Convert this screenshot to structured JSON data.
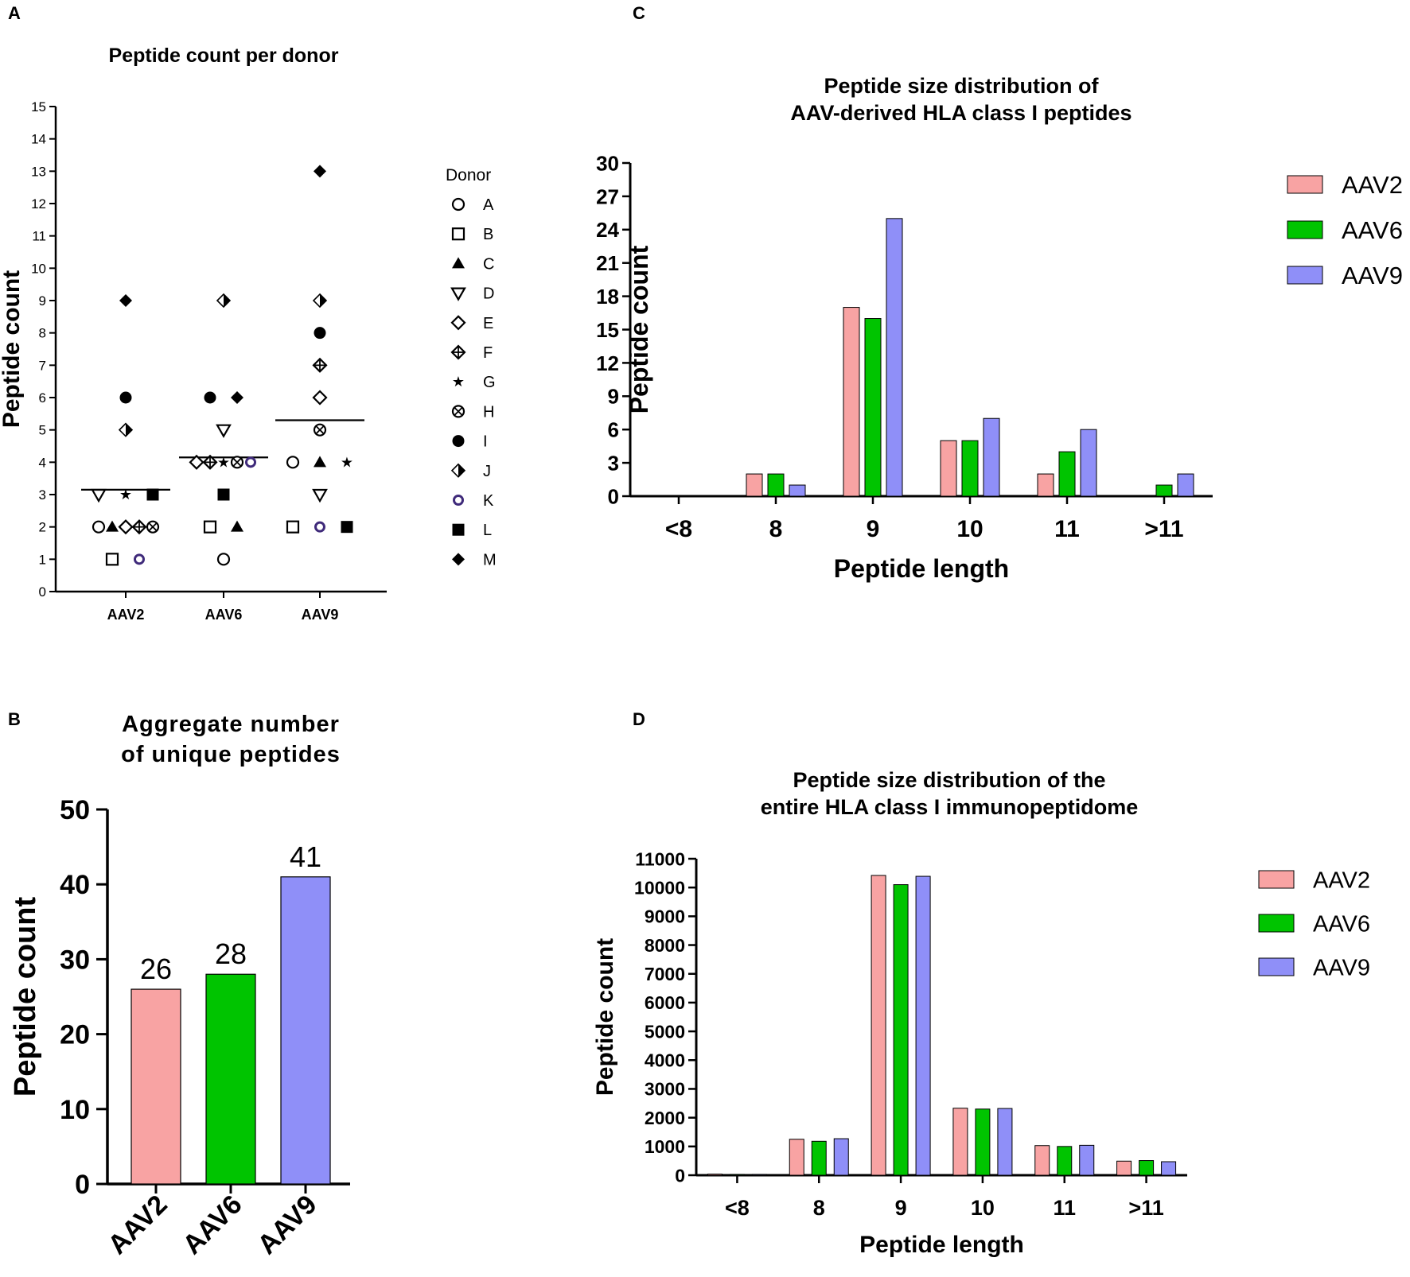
{
  "colors": {
    "aav2": "#f8a3a3",
    "aav6": "#00c400",
    "aav9": "#8f8ff8",
    "purple": "#3f2a7a"
  },
  "panels": {
    "a": "A",
    "b": "B",
    "c": "C",
    "d": "D"
  },
  "chart_data": [
    {
      "panel": "A",
      "type": "scatter",
      "title": "Peptide count per donor",
      "ylabel": "Peptide count",
      "xlabel": "",
      "categories": [
        "AAV2",
        "AAV6",
        "AAV9"
      ],
      "ylim": [
        0,
        15
      ],
      "yticks": [
        0,
        1,
        2,
        3,
        4,
        5,
        6,
        7,
        8,
        9,
        10,
        11,
        12,
        13,
        14,
        15
      ],
      "legend_title": "Donor",
      "legend": [
        {
          "label": "A",
          "marker": "circle-open"
        },
        {
          "label": "B",
          "marker": "square-open"
        },
        {
          "label": "C",
          "marker": "triangle-up"
        },
        {
          "label": "D",
          "marker": "triangle-down-open"
        },
        {
          "label": "E",
          "marker": "diamond-open"
        },
        {
          "label": "F",
          "marker": "diamond-plus"
        },
        {
          "label": "G",
          "marker": "star"
        },
        {
          "label": "H",
          "marker": "circle-x"
        },
        {
          "label": "I",
          "marker": "circle"
        },
        {
          "label": "J",
          "marker": "diamond-half"
        },
        {
          "label": "K",
          "marker": "circle-purple"
        },
        {
          "label": "L",
          "marker": "square"
        },
        {
          "label": "M",
          "marker": "diamond"
        }
      ],
      "means": [
        3.15,
        4.15,
        5.3
      ],
      "points": [
        {
          "group": "AAV2",
          "donor": "A",
          "value": 2
        },
        {
          "group": "AAV2",
          "donor": "B",
          "value": 1
        },
        {
          "group": "AAV2",
          "donor": "C",
          "value": 2
        },
        {
          "group": "AAV2",
          "donor": "D",
          "value": 3
        },
        {
          "group": "AAV2",
          "donor": "E",
          "value": 2
        },
        {
          "group": "AAV2",
          "donor": "F",
          "value": 2
        },
        {
          "group": "AAV2",
          "donor": "G",
          "value": 3
        },
        {
          "group": "AAV2",
          "donor": "H",
          "value": 2
        },
        {
          "group": "AAV2",
          "donor": "I",
          "value": 6
        },
        {
          "group": "AAV2",
          "donor": "J",
          "value": 5
        },
        {
          "group": "AAV2",
          "donor": "K",
          "value": 1
        },
        {
          "group": "AAV2",
          "donor": "L",
          "value": 3
        },
        {
          "group": "AAV2",
          "donor": "M",
          "value": 9
        },
        {
          "group": "AAV6",
          "donor": "A",
          "value": 1
        },
        {
          "group": "AAV6",
          "donor": "B",
          "value": 2
        },
        {
          "group": "AAV6",
          "donor": "C",
          "value": 2
        },
        {
          "group": "AAV6",
          "donor": "D",
          "value": 5
        },
        {
          "group": "AAV6",
          "donor": "E",
          "value": 4
        },
        {
          "group": "AAV6",
          "donor": "F",
          "value": 4
        },
        {
          "group": "AAV6",
          "donor": "G",
          "value": 4
        },
        {
          "group": "AAV6",
          "donor": "H",
          "value": 4
        },
        {
          "group": "AAV6",
          "donor": "I",
          "value": 6
        },
        {
          "group": "AAV6",
          "donor": "J",
          "value": 9
        },
        {
          "group": "AAV6",
          "donor": "K",
          "value": 4
        },
        {
          "group": "AAV6",
          "donor": "L",
          "value": 3
        },
        {
          "group": "AAV6",
          "donor": "M",
          "value": 6
        },
        {
          "group": "AAV9",
          "donor": "A",
          "value": 4
        },
        {
          "group": "AAV9",
          "donor": "B",
          "value": 2
        },
        {
          "group": "AAV9",
          "donor": "C",
          "value": 4
        },
        {
          "group": "AAV9",
          "donor": "D",
          "value": 3
        },
        {
          "group": "AAV9",
          "donor": "E",
          "value": 6
        },
        {
          "group": "AAV9",
          "donor": "F",
          "value": 7
        },
        {
          "group": "AAV9",
          "donor": "G",
          "value": 4
        },
        {
          "group": "AAV9",
          "donor": "H",
          "value": 5
        },
        {
          "group": "AAV9",
          "donor": "I",
          "value": 8
        },
        {
          "group": "AAV9",
          "donor": "J",
          "value": 9
        },
        {
          "group": "AAV9",
          "donor": "K",
          "value": 2
        },
        {
          "group": "AAV9",
          "donor": "L",
          "value": 2
        },
        {
          "group": "AAV9",
          "donor": "M",
          "value": 13
        }
      ]
    },
    {
      "panel": "B",
      "type": "bar",
      "title": [
        "Aggregate number",
        "of unique peptides"
      ],
      "ylabel": "Peptide count",
      "categories": [
        "AAV2",
        "AAV6",
        "AAV9"
      ],
      "values": [
        26,
        28,
        41
      ],
      "data_labels": [
        "26",
        "28",
        "41"
      ],
      "ylim": [
        0,
        50
      ],
      "yticks": [
        0,
        10,
        20,
        30,
        40,
        50
      ]
    },
    {
      "panel": "C",
      "type": "bar",
      "title": [
        "Peptide size distribution of",
        "AAV-derived HLA class I peptides"
      ],
      "xlabel": "Peptide length",
      "ylabel": "Peptide count",
      "categories": [
        "<8",
        "8",
        "9",
        "10",
        "11",
        ">11"
      ],
      "series": [
        {
          "name": "AAV2",
          "values": [
            0,
            2,
            17,
            5,
            2,
            0
          ]
        },
        {
          "name": "AAV6",
          "values": [
            0,
            2,
            16,
            5,
            4,
            1
          ]
        },
        {
          "name": "AAV9",
          "values": [
            0,
            1,
            25,
            7,
            6,
            2
          ]
        }
      ],
      "ylim": [
        0,
        30
      ],
      "yticks": [
        0,
        3,
        6,
        9,
        12,
        15,
        18,
        21,
        24,
        27,
        30
      ],
      "legend": "right"
    },
    {
      "panel": "D",
      "type": "bar",
      "title": [
        "Peptide size distribution of the",
        "entire HLA class I immunopeptidome"
      ],
      "xlabel": "Peptide length",
      "ylabel": "Peptide count",
      "categories": [
        "<8",
        "8",
        "9",
        "10",
        "11",
        ">11"
      ],
      "series": [
        {
          "name": "AAV2",
          "values": [
            40,
            1250,
            10420,
            2330,
            1030,
            490
          ]
        },
        {
          "name": "AAV6",
          "values": [
            30,
            1180,
            10100,
            2300,
            1000,
            510
          ]
        },
        {
          "name": "AAV9",
          "values": [
            30,
            1270,
            10390,
            2320,
            1040,
            470
          ]
        }
      ],
      "ylim": [
        0,
        11000
      ],
      "yticks": [
        0,
        1000,
        2000,
        3000,
        4000,
        5000,
        6000,
        7000,
        8000,
        9000,
        10000,
        11000
      ],
      "legend": "right"
    }
  ]
}
